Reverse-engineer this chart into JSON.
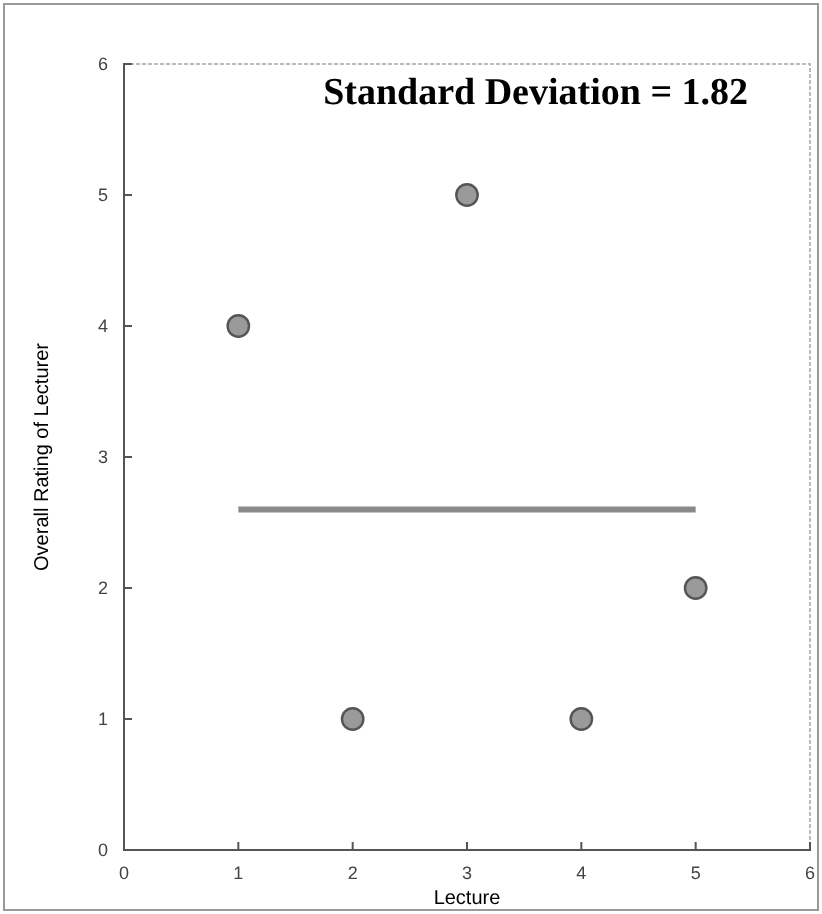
{
  "chart_data": {
    "type": "scatter",
    "title": "Standard Deviation = 1.82",
    "xlabel": "Lecture",
    "ylabel": "Overall Rating of Lecturer",
    "xlim": [
      0,
      6
    ],
    "xticks": [
      0,
      1,
      2,
      3,
      4,
      5,
      6
    ],
    "ylim": [
      0,
      6
    ],
    "yticks": [
      0,
      1,
      2,
      3,
      4,
      5,
      6
    ],
    "series": [
      {
        "color": "#9a9a9a",
        "x": [
          1,
          2,
          3,
          4,
          5
        ],
        "values": [
          4,
          1,
          5,
          1,
          2
        ],
        "marker": "circle"
      },
      {
        "type": "line",
        "color": "#8a8a8a",
        "x": [
          1,
          5
        ],
        "values": [
          2.6,
          2.6
        ],
        "marker": "none"
      }
    ]
  }
}
